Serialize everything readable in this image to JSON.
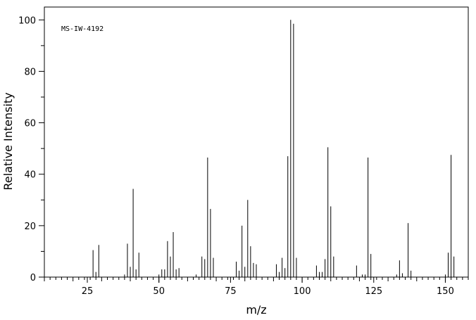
{
  "chart_data": {
    "type": "bar",
    "title": "MS-IW-4192",
    "xlabel": "m/z",
    "ylabel": "Relative Intensity",
    "xlim": [
      10,
      158
    ],
    "ylim": [
      0,
      105
    ],
    "x_ticks": [
      25,
      50,
      75,
      100,
      125,
      150
    ],
    "y_ticks": [
      0,
      20,
      40,
      60,
      80,
      100
    ],
    "grid": false,
    "legend": "none",
    "x": [
      27,
      28,
      29,
      38,
      39,
      40,
      41,
      42,
      43,
      50,
      51,
      52,
      53,
      54,
      55,
      56,
      57,
      63,
      65,
      66,
      67,
      68,
      69,
      77,
      78,
      79,
      80,
      81,
      82,
      83,
      84,
      91,
      92,
      93,
      94,
      95,
      96,
      97,
      98,
      105,
      106,
      107,
      108,
      109,
      110,
      111,
      119,
      121,
      122,
      123,
      124,
      133,
      134,
      135,
      137,
      138,
      150,
      151,
      152,
      153
    ],
    "values": [
      10.5,
      2,
      12.5,
      1,
      13,
      4,
      34.3,
      3,
      9.5,
      1,
      3,
      3,
      14,
      8,
      17.5,
      3,
      3.5,
      1,
      8,
      7,
      46.5,
      26.5,
      7.5,
      6,
      2.5,
      20,
      4,
      30,
      12,
      5.5,
      5,
      5,
      2,
      7.5,
      3.5,
      47,
      100,
      98.5,
      7.5,
      4.5,
      2,
      2,
      7,
      50.5,
      27.5,
      8,
      4.5,
      1,
      1,
      46.5,
      9,
      1,
      6.5,
      1.5,
      21,
      2.5,
      1,
      9.5,
      47.5,
      8
    ],
    "color": "#000000"
  }
}
